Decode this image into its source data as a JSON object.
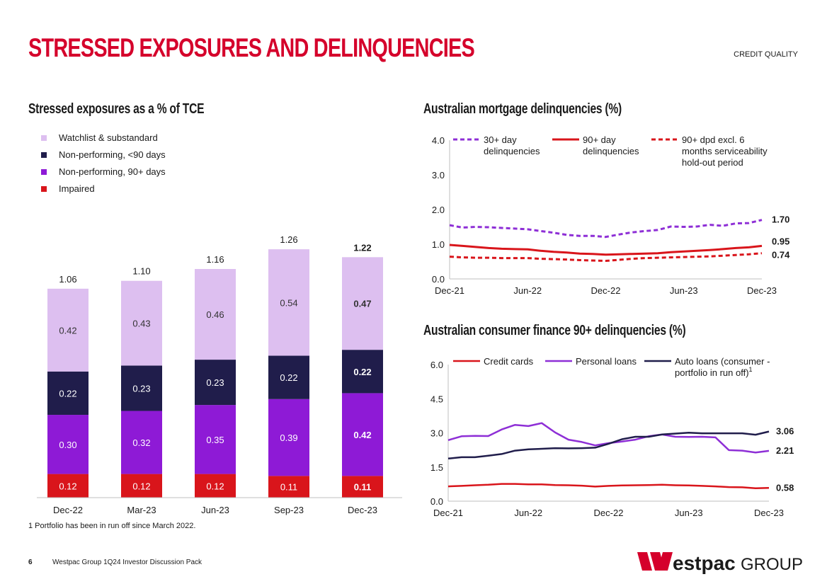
{
  "header": {
    "title": "STRESSED EXPOSURES AND DELINQUENCIES",
    "section": "CREDIT QUALITY"
  },
  "footer": {
    "footnote": "1 Portfolio has been in run off since March 2022.",
    "page_number": "6",
    "text": "Westpac Group 1Q24 Investor Discussion Pack",
    "logo_text": "estpac",
    "logo_group": "GROUP"
  },
  "colors": {
    "brand_red": "#d5002b",
    "watchlist": "#ddbff0",
    "np_lt90": "#201d4b",
    "np_90": "#8e1ad6",
    "impaired": "#d9151b",
    "mort_30": "#8e2fd6",
    "mort_90": "#d9151b",
    "cf_personal": "#8e2fd6",
    "cf_auto": "#201d4b"
  },
  "chart_data": [
    {
      "id": "stressed",
      "type": "bar",
      "stacked": true,
      "title": "Stressed exposures as a % of TCE",
      "categories": [
        "Dec-22",
        "Mar-23",
        "Jun-23",
        "Sep-23",
        "Dec-23"
      ],
      "series": [
        {
          "name": "Impaired",
          "color": "#d9151b",
          "label_color": "#ffffff",
          "values": [
            0.12,
            0.12,
            0.12,
            0.11,
            0.11
          ],
          "labels": [
            "0.12",
            "0.12",
            "0.12",
            "0.11",
            "0.11"
          ]
        },
        {
          "name": "Non-performing, 90+ days",
          "color": "#8e1ad6",
          "label_color": "#ffffff",
          "values": [
            0.3,
            0.32,
            0.35,
            0.39,
            0.42
          ],
          "labels": [
            "0.30",
            "0.32",
            "0.35",
            "0.39",
            "0.42"
          ]
        },
        {
          "name": "Non-performing, <90 days",
          "color": "#201d4b",
          "label_color": "#ffffff",
          "values": [
            0.22,
            0.23,
            0.23,
            0.22,
            0.22
          ],
          "labels": [
            "0.22",
            "0.23",
            "0.23",
            "0.22",
            "0.22"
          ]
        },
        {
          "name": "Watchlist & substandard",
          "color": "#ddbff0",
          "label_color": "#333333",
          "values": [
            0.42,
            0.43,
            0.46,
            0.54,
            0.47
          ],
          "labels": [
            "0.42",
            "0.43",
            "0.46",
            "0.54",
            "0.47"
          ]
        }
      ],
      "totals": [
        1.06,
        1.1,
        1.16,
        1.26,
        1.22
      ],
      "total_labels": [
        "1.06",
        "1.10",
        "1.16",
        "1.26",
        "1.22"
      ],
      "legend": [
        "Watchlist & substandard",
        "Non-performing, <90 days",
        "Non-performing, 90+ days",
        "Impaired"
      ],
      "legend_colors": [
        "#ddbff0",
        "#201d4b",
        "#8e1ad6",
        "#d9151b"
      ],
      "bold_last_category": true,
      "ylim": [
        0,
        1.3
      ]
    },
    {
      "id": "mortgage",
      "type": "line",
      "title": "Australian mortgage delinquencies (%)",
      "ylim": [
        0,
        4.0
      ],
      "yticks": [
        0,
        1,
        2,
        3,
        4
      ],
      "ytick_labels": [
        "0.0",
        "1.0",
        "2.0",
        "3.0",
        "4.0"
      ],
      "x_count": 25,
      "xtick_index": [
        0,
        6,
        12,
        18,
        24
      ],
      "xtick_labels": [
        "Dec-21",
        "Jun-22",
        "Dec-22",
        "Jun-23",
        "Dec-23"
      ],
      "series": [
        {
          "name": "30+ day delinquencies",
          "legend_lines": [
            "30+ day",
            "delinquencies"
          ],
          "color": "#8e2fd6",
          "dash": "6 4",
          "width": 3,
          "values": [
            1.55,
            1.48,
            1.5,
            1.49,
            1.47,
            1.45,
            1.43,
            1.38,
            1.33,
            1.27,
            1.24,
            1.24,
            1.21,
            1.28,
            1.34,
            1.38,
            1.41,
            1.51,
            1.5,
            1.51,
            1.56,
            1.53,
            1.6,
            1.61,
            1.7
          ],
          "end_label": "1.70"
        },
        {
          "name": "90+ day delinquencies",
          "legend_lines": [
            "90+ day",
            "delinquencies"
          ],
          "color": "#d9151b",
          "dash": "",
          "width": 3,
          "values": [
            0.98,
            0.95,
            0.92,
            0.89,
            0.87,
            0.86,
            0.85,
            0.81,
            0.78,
            0.76,
            0.73,
            0.72,
            0.7,
            0.71,
            0.72,
            0.73,
            0.74,
            0.77,
            0.79,
            0.81,
            0.83,
            0.86,
            0.89,
            0.91,
            0.95
          ],
          "end_label": "0.95"
        },
        {
          "name": "90+ dpd excl. 6 months serviceability hold-out period",
          "legend_lines": [
            "90+ dpd excl. 6",
            "months serviceability",
            "hold-out period"
          ],
          "color": "#d9151b",
          "dash": "6 4",
          "width": 3,
          "values": [
            0.64,
            0.62,
            0.61,
            0.61,
            0.6,
            0.6,
            0.6,
            0.58,
            0.57,
            0.56,
            0.54,
            0.53,
            0.52,
            0.55,
            0.58,
            0.6,
            0.61,
            0.62,
            0.63,
            0.64,
            0.65,
            0.67,
            0.69,
            0.71,
            0.74
          ],
          "end_label": "0.74"
        }
      ]
    },
    {
      "id": "consumer",
      "type": "line",
      "title": "Australian consumer finance 90+ delinquencies (%)",
      "ylim": [
        0,
        6.0
      ],
      "yticks": [
        0,
        1.5,
        3,
        4.5,
        6
      ],
      "ytick_labels": [
        "0.0",
        "1.5",
        "3.0",
        "4.5",
        "6.0"
      ],
      "x_count": 25,
      "xtick_index": [
        0,
        6,
        12,
        18,
        24
      ],
      "xtick_labels": [
        "Dec-21",
        "Jun-22",
        "Dec-22",
        "Jun-23",
        "Dec-23"
      ],
      "series": [
        {
          "name": "Credit cards",
          "legend_lines": [
            "Credit cards"
          ],
          "color": "#d9151b",
          "dash": "",
          "width": 2.5,
          "values": [
            0.65,
            0.67,
            0.7,
            0.72,
            0.76,
            0.76,
            0.74,
            0.74,
            0.71,
            0.7,
            0.68,
            0.64,
            0.67,
            0.69,
            0.7,
            0.71,
            0.72,
            0.7,
            0.69,
            0.67,
            0.65,
            0.62,
            0.61,
            0.57,
            0.58
          ],
          "end_label": "0.58"
        },
        {
          "name": "Personal loans",
          "legend_lines": [
            "Personal loans"
          ],
          "color": "#8e2fd6",
          "dash": "",
          "width": 2.5,
          "values": [
            2.68,
            2.85,
            2.87,
            2.86,
            3.15,
            3.35,
            3.3,
            3.43,
            3.02,
            2.7,
            2.6,
            2.45,
            2.55,
            2.62,
            2.7,
            2.85,
            2.93,
            2.83,
            2.82,
            2.83,
            2.8,
            2.24,
            2.22,
            2.14,
            2.21
          ],
          "end_label": "2.21"
        },
        {
          "name": "Auto loans (consumer - portfolio in run off)",
          "legend_lines": [
            "Auto loans (consumer -",
            "portfolio in run off)"
          ],
          "legend_sup": "1",
          "color": "#201d4b",
          "dash": "",
          "width": 2.5,
          "values": [
            1.87,
            1.93,
            1.93,
            2.0,
            2.07,
            2.22,
            2.28,
            2.3,
            2.33,
            2.32,
            2.33,
            2.35,
            2.52,
            2.72,
            2.83,
            2.83,
            2.93,
            2.97,
            3.01,
            2.98,
            2.98,
            2.98,
            2.98,
            2.92,
            3.06
          ],
          "end_label": "3.06"
        }
      ]
    }
  ]
}
